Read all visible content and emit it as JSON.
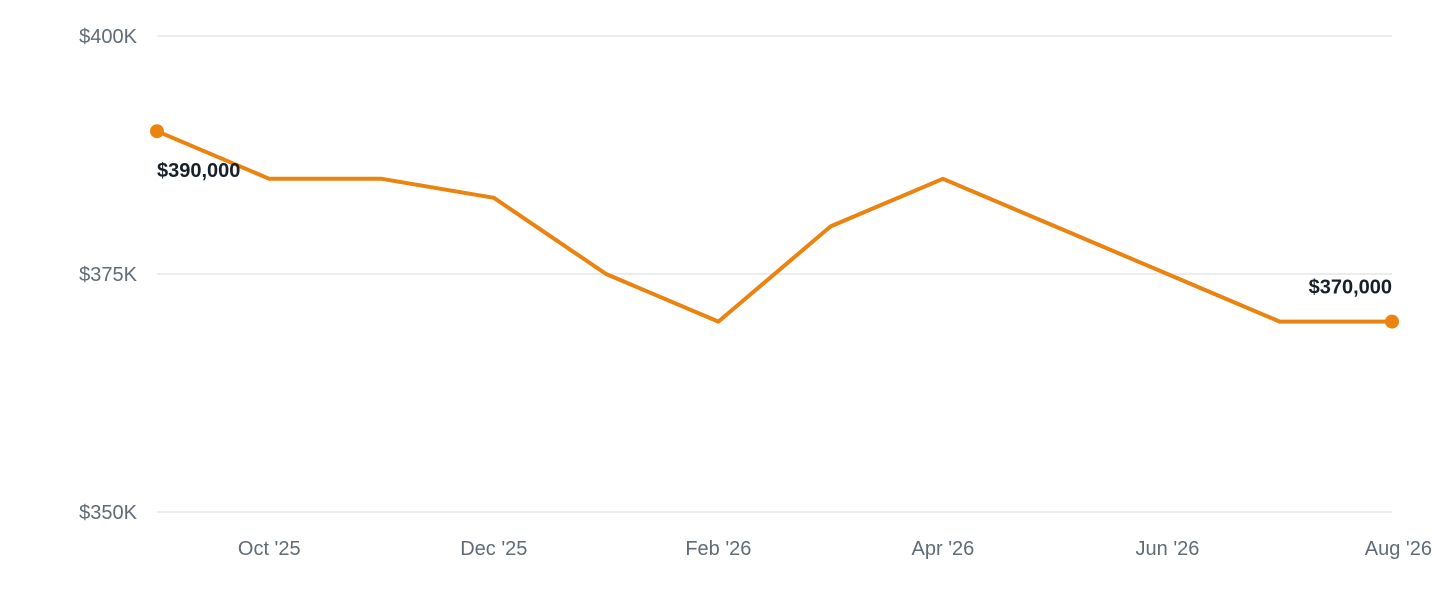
{
  "chart_data": {
    "type": "line",
    "title": "",
    "xlabel": "",
    "ylabel": "",
    "ylim": [
      350000,
      400000
    ],
    "y_ticks": [
      {
        "value": 400000,
        "label": "$400K"
      },
      {
        "value": 375000,
        "label": "$375K"
      },
      {
        "value": 350000,
        "label": "$350K"
      }
    ],
    "x_ticks": [
      {
        "x": "2025-10",
        "label": "Oct '25"
      },
      {
        "x": "2025-12",
        "label": "Dec '25"
      },
      {
        "x": "2026-02",
        "label": "Feb '26"
      },
      {
        "x": "2026-04",
        "label": "Apr '26"
      },
      {
        "x": "2026-06",
        "label": "Jun '26"
      },
      {
        "x": "2026-08",
        "label": "Aug '26"
      }
    ],
    "grid": true,
    "legend": "none",
    "series": [
      {
        "color": "#ea830f",
        "points": [
          {
            "x": "2025-09",
            "y": 390000
          },
          {
            "x": "2025-10",
            "y": 385000
          },
          {
            "x": "2025-11",
            "y": 385000
          },
          {
            "x": "2025-12",
            "y": 383000
          },
          {
            "x": "2026-01",
            "y": 375000
          },
          {
            "x": "2026-02",
            "y": 370000
          },
          {
            "x": "2026-03",
            "y": 380000
          },
          {
            "x": "2026-04",
            "y": 385000
          },
          {
            "x": "2026-05",
            "y": 380000
          },
          {
            "x": "2026-06",
            "y": 375000
          },
          {
            "x": "2026-07",
            "y": 370000
          },
          {
            "x": "2026-08",
            "y": 370000
          }
        ]
      }
    ],
    "annotations": [
      {
        "x": "2025-09",
        "y": 390000,
        "label": "$390,000"
      },
      {
        "x": "2026-08",
        "y": 370000,
        "label": "$370,000"
      }
    ]
  }
}
